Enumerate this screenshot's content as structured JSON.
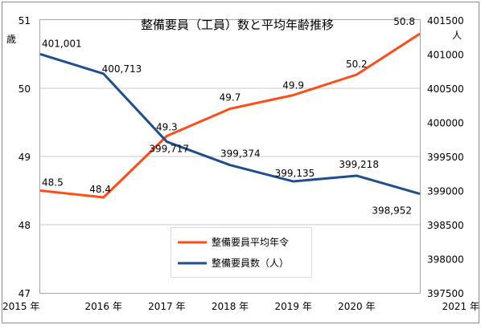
{
  "chart_data": {
    "type": "line",
    "title": "整備要員（工員）数と平均年齢推移",
    "categories": [
      "2015 年",
      "2016 年",
      "2017 年",
      "2018 年",
      "2019 年",
      "2020 年",
      "2021 年"
    ],
    "y_left": {
      "unit": "歳",
      "ylim": [
        47,
        51
      ],
      "ticks": [
        "47",
        "48",
        "49",
        "50",
        "51"
      ],
      "tick_values": [
        47,
        48,
        49,
        50,
        51
      ]
    },
    "y_right": {
      "unit": "人",
      "ylim": [
        397500,
        401500
      ],
      "ticks": [
        "397500",
        "398000",
        "398500",
        "399000",
        "399500",
        "400000",
        "400500",
        "401000",
        "401500"
      ],
      "tick_values": [
        397500,
        398000,
        398500,
        399000,
        399500,
        400000,
        400500,
        401000,
        401500
      ]
    },
    "series": [
      {
        "name": "整備要員平均年令",
        "axis": "left",
        "color": "#ff4d1a",
        "values": [
          48.5,
          48.4,
          49.3,
          49.7,
          49.9,
          50.2,
          50.8
        ],
        "labels": [
          "48.5",
          "48.4",
          "49.3",
          "49.7",
          "49.9",
          "50.2",
          "50.8"
        ]
      },
      {
        "name": "整備要員数（人）",
        "axis": "right",
        "color": "#1f4e8c",
        "values": [
          401001,
          400713,
          399717,
          399374,
          399135,
          399218,
          398952
        ],
        "labels": [
          "401,001",
          "400,713",
          "399,717",
          "399,374",
          "399,135",
          "399,218",
          "398,952"
        ]
      }
    ],
    "grid": "horizontal",
    "legend": "center-bottom"
  }
}
